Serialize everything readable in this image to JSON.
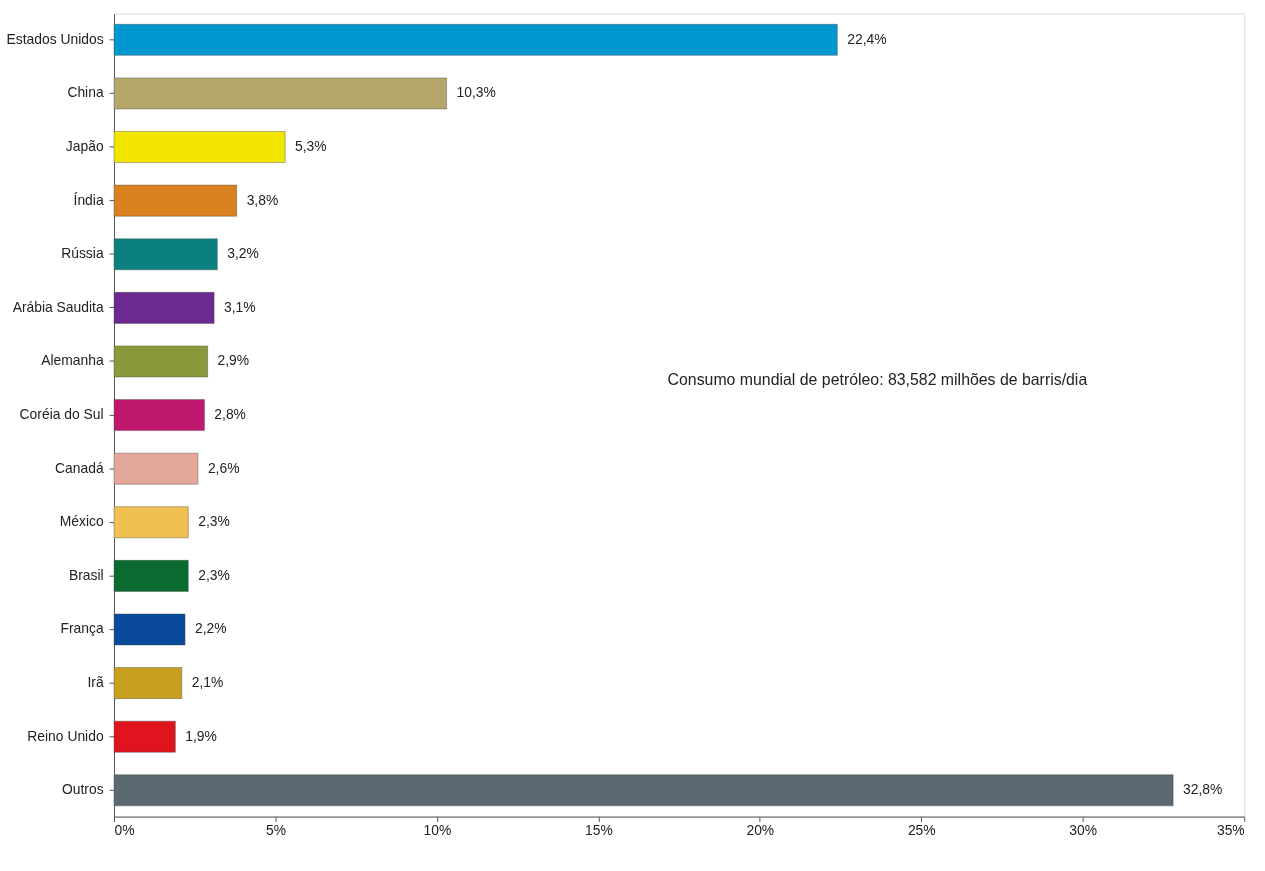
{
  "chart_data": {
    "type": "bar",
    "orientation": "horizontal",
    "categories": [
      "Estados Unidos",
      "China",
      "Japão",
      "Índia",
      "Rússia",
      "Arábia Saudita",
      "Alemanha",
      "Coréia do Sul",
      "Canadá",
      "México",
      "Brasil",
      "França",
      "Irã",
      "Reino Unido",
      "Outros"
    ],
    "values": [
      22.4,
      10.3,
      5.3,
      3.8,
      3.2,
      3.1,
      2.9,
      2.8,
      2.6,
      2.3,
      2.3,
      2.2,
      2.1,
      1.9,
      32.8
    ],
    "value_labels": [
      "22,4%",
      "10,3%",
      "5,3%",
      "3,8%",
      "3,2%",
      "3,1%",
      "2,9%",
      "2,8%",
      "2,6%",
      "2,3%",
      "2,3%",
      "2,2%",
      "2,1%",
      "1,9%",
      "32,8%"
    ],
    "colors": [
      "#0096d0",
      "#b5a66a",
      "#f2e600",
      "#d9801f",
      "#0a8080",
      "#6a2a8f",
      "#8a9a3a",
      "#c0186e",
      "#e3a89a",
      "#f0c050",
      "#0a6a30",
      "#0a4a9a",
      "#c8a020",
      "#e0141e",
      "#5a6a70"
    ],
    "xlim": [
      0,
      35
    ],
    "xticks": [
      {
        "value": 0,
        "label": "0%"
      },
      {
        "value": 5,
        "label": "5%"
      },
      {
        "value": 10,
        "label": "10%"
      },
      {
        "value": 15,
        "label": "15%"
      },
      {
        "value": 20,
        "label": "20%"
      },
      {
        "value": 25,
        "label": "25%"
      },
      {
        "value": 30,
        "label": "30%"
      },
      {
        "value": 35,
        "label": "35%"
      }
    ],
    "annotations": [
      "Consumo mundial de petróleo: 83,582 milhões de barris/dia"
    ],
    "grid": false,
    "legend": false
  }
}
